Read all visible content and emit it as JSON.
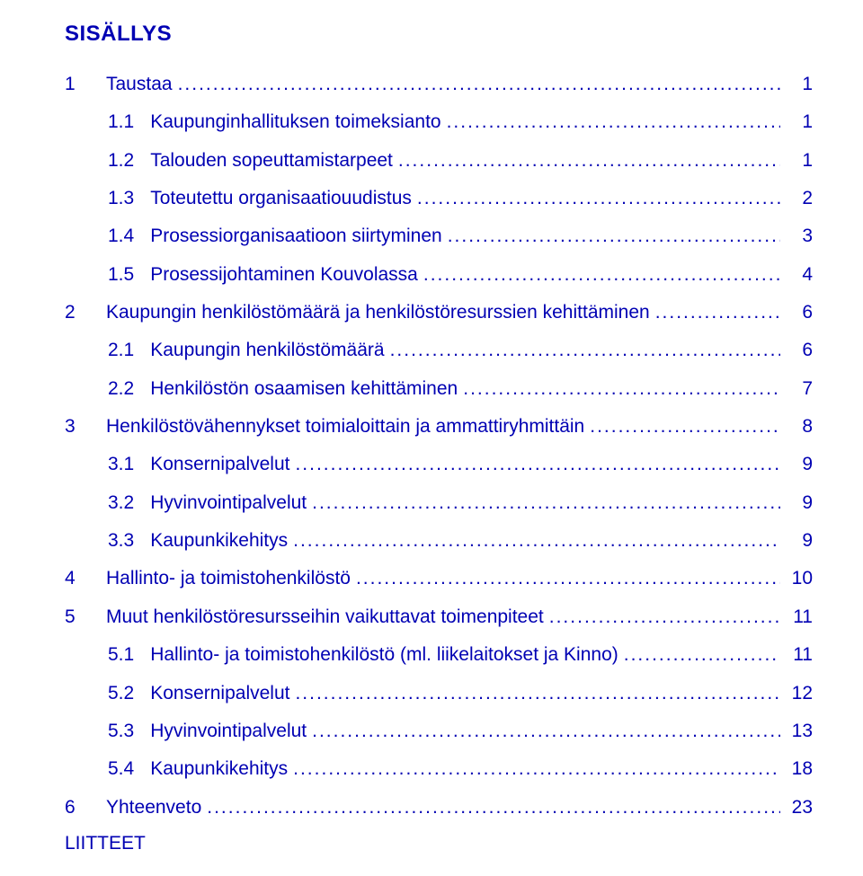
{
  "colors": {
    "text": "#0000b3",
    "background": "#ffffff"
  },
  "typography": {
    "font_family": "Arial",
    "body_size_pt": 16,
    "heading_weight": 700
  },
  "heading": "SISÄLLYS",
  "toc": [
    {
      "num": "1",
      "label": "Taustaa",
      "page": "1",
      "indent": 0
    },
    {
      "num": "1.1",
      "label": "Kaupunginhallituksen toimeksianto",
      "page": "1",
      "indent": 1
    },
    {
      "num": "1.2",
      "label": "Talouden sopeuttamistarpeet",
      "page": "1",
      "indent": 1
    },
    {
      "num": "1.3",
      "label": "Toteutettu organisaatiouudistus",
      "page": "2",
      "indent": 1
    },
    {
      "num": "1.4",
      "label": "Prosessiorganisaatioon siirtyminen",
      "page": "3",
      "indent": 1
    },
    {
      "num": "1.5",
      "label": "Prosessijohtaminen Kouvolassa",
      "page": "4",
      "indent": 1
    },
    {
      "num": "2",
      "label": "Kaupungin henkilöstömäärä ja henkilöstöresurssien kehittäminen",
      "page": "6",
      "indent": 0
    },
    {
      "num": "2.1",
      "label": "Kaupungin henkilöstömäärä",
      "page": "6",
      "indent": 1
    },
    {
      "num": "2.2",
      "label": "Henkilöstön osaamisen kehittäminen",
      "page": "7",
      "indent": 1
    },
    {
      "num": "3",
      "label": "Henkilöstövähennykset toimialoittain ja ammattiryhmittäin",
      "page": "8",
      "indent": 0
    },
    {
      "num": "3.1",
      "label": "Konsernipalvelut",
      "page": "9",
      "indent": 1
    },
    {
      "num": "3.2",
      "label": "Hyvinvointipalvelut",
      "page": "9",
      "indent": 1
    },
    {
      "num": "3.3",
      "label": "Kaupunkikehitys",
      "page": "9",
      "indent": 1
    },
    {
      "num": "4",
      "label": "Hallinto- ja toimistohenkilöstö",
      "page": "10",
      "indent": 0
    },
    {
      "num": "5",
      "label": "Muut henkilöstöresursseihin vaikuttavat toimenpiteet",
      "page": "11",
      "indent": 0
    },
    {
      "num": "5.1",
      "label": "Hallinto- ja toimistohenkilöstö (ml. liikelaitokset ja Kinno)",
      "page": "11",
      "indent": 1
    },
    {
      "num": "5.2",
      "label": "Konsernipalvelut",
      "page": "12",
      "indent": 1
    },
    {
      "num": "5.3",
      "label": "Hyvinvointipalvelut",
      "page": "13",
      "indent": 1
    },
    {
      "num": "5.4",
      "label": "Kaupunkikehitys",
      "page": "18",
      "indent": 1
    },
    {
      "num": "6",
      "label": "Yhteenveto",
      "page": "23",
      "indent": 0
    }
  ],
  "appendix_label": "LIITTEET"
}
